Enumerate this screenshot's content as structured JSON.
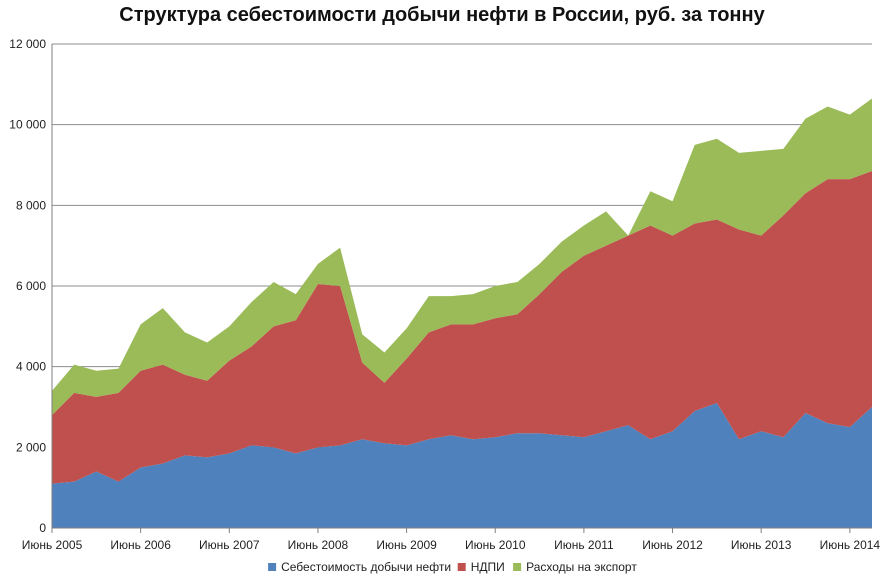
{
  "chart_data": {
    "type": "area",
    "stacked": true,
    "title": "Структура себестоимости добычи нефти в России, руб. за тонну",
    "xlabel": "",
    "ylabel": "",
    "ylim": [
      0,
      12000
    ],
    "yticks": [
      0,
      2000,
      4000,
      6000,
      8000,
      10000,
      12000
    ],
    "ytick_labels": [
      "0",
      "2 000",
      "4 000",
      "6 000",
      "8 000",
      "10 000",
      "12 000"
    ],
    "grid": true,
    "legend_position": "bottom",
    "xtick_labels": [
      "Июнь 2005",
      "Июнь 2006",
      "Июнь 2007",
      "Июнь 2008",
      "Июнь 2009",
      "Июнь 2010",
      "Июнь 2011",
      "Июнь 2012",
      "Июнь 2013",
      "Июнь 2014"
    ],
    "xtick_index": [
      0,
      4,
      8,
      12,
      16,
      20,
      24,
      28,
      32,
      36
    ],
    "x_start": "Июнь 2005",
    "x_step": "квартал",
    "series": [
      {
        "name": "Себестоимость добычи нефти",
        "color": "#4f81bd",
        "values": [
          1100,
          1150,
          1400,
          1150,
          1500,
          1600,
          1800,
          1750,
          1850,
          2050,
          2000,
          1850,
          2000,
          2050,
          2200,
          2100,
          2050,
          2200,
          2300,
          2200,
          2250,
          2350,
          2350,
          2300,
          2250,
          2400,
          2550,
          2200,
          2400,
          2900,
          3100,
          2200,
          2400,
          2250,
          2850,
          2600,
          2500,
          3000
        ]
      },
      {
        "name": "НДПИ",
        "color": "#c0504d",
        "values": [
          1700,
          2200,
          1850,
          2200,
          2400,
          2450,
          2000,
          1900,
          2300,
          2450,
          3000,
          3300,
          4050,
          3950,
          1900,
          1500,
          2150,
          2650,
          2750,
          2850,
          2950,
          2950,
          3450,
          4050,
          4500,
          4600,
          4700,
          5300,
          4850,
          4650,
          4550,
          5200,
          4850,
          5500,
          5450,
          6050,
          6150,
          5850
        ]
      },
      {
        "name": "Расходы на экспорт",
        "color": "#9bbb59",
        "values": [
          600,
          700,
          650,
          600,
          1150,
          1400,
          1050,
          950,
          850,
          1100,
          1100,
          650,
          500,
          950,
          700,
          750,
          750,
          900,
          700,
          750,
          800,
          800,
          750,
          750,
          750,
          850,
          0,
          850,
          850,
          1950,
          2000,
          1900,
          2100,
          1650,
          1850,
          1800,
          1600,
          1800
        ]
      }
    ]
  }
}
